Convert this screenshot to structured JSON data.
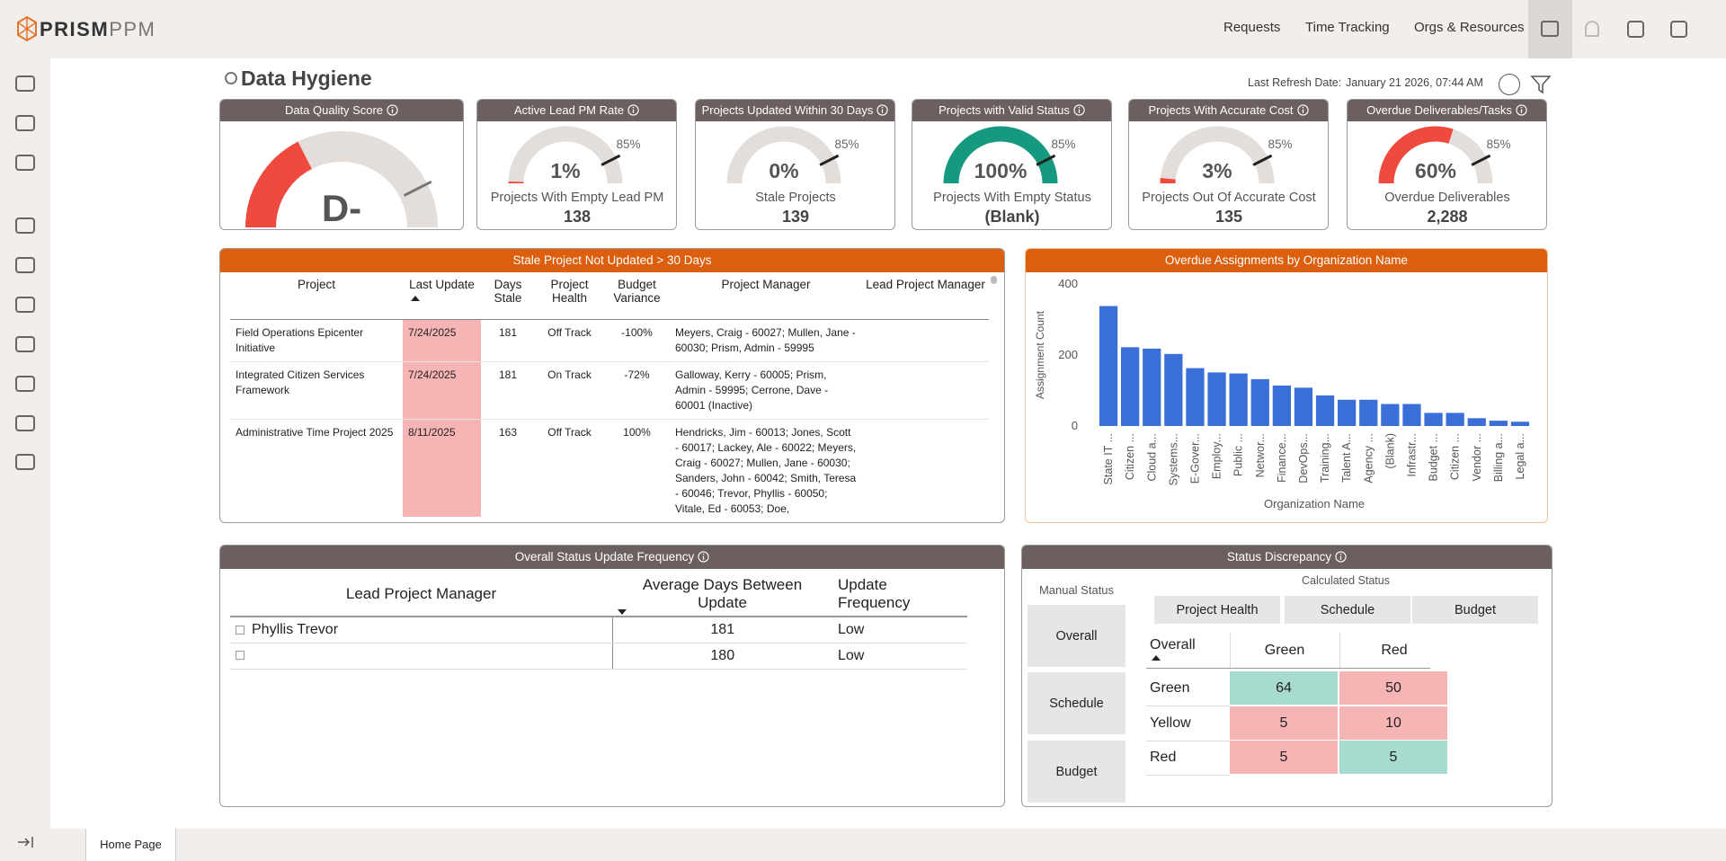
{
  "nav": {
    "logo_bold": "PRISM",
    "logo_light": "PPM",
    "links": [
      "Requests",
      "Time Tracking",
      "Orgs & Resources"
    ]
  },
  "header": {
    "title": "Data Hygiene",
    "refresh_label": "Last Refresh Date:",
    "refresh_date": "January 21 2026, 07:44 AM"
  },
  "score": {
    "title": "Data Quality Score",
    "grade": "D-",
    "value": 35,
    "target": 85,
    "color": "#ef4a3d"
  },
  "kpis": [
    {
      "title": "Active Lead PM Rate",
      "value": 1,
      "value_label": "1%",
      "target": 85,
      "target_label": "85%",
      "caption": "Projects With Empty Lead PM",
      "count": "138",
      "color": "#ef4a3d"
    },
    {
      "title": "Projects Updated Within 30 Days",
      "value": 0,
      "value_label": "0%",
      "target": 85,
      "target_label": "85%",
      "caption": "Stale Projects",
      "count": "139",
      "color": "#ef4a3d"
    },
    {
      "title": "Projects with Valid Status",
      "value": 100,
      "value_label": "100%",
      "target": 85,
      "target_label": "85%",
      "caption": "Projects With Empty Status",
      "count": "(Blank)",
      "color": "#15997f"
    },
    {
      "title": "Projects With Accurate Cost",
      "value": 3,
      "value_label": "3%",
      "target": 85,
      "target_label": "85%",
      "caption": "Projects Out Of Accurate Cost",
      "count": "135",
      "color": "#ef4a3d"
    },
    {
      "title": "Overdue Deliverables/Tasks",
      "value": 60,
      "value_label": "60%",
      "target": 85,
      "target_label": "85%",
      "caption": "Overdue Deliverables",
      "count": "2,288",
      "color": "#ef4a3d"
    }
  ],
  "stale_table": {
    "title": "Stale Project Not Updated > 30 Days",
    "columns": [
      "Project",
      "Last Update",
      "Days Stale",
      "Project Health",
      "Budget Variance",
      "Project Manager",
      "Lead Project Manager"
    ],
    "rows": [
      [
        "Field Operations Epicenter Initiative",
        "7/24/2025",
        181,
        "Off Track",
        "-100%",
        "Meyers, Craig - 60027; Mullen, Jane - 60030; Prism, Admin - 59995"
      ],
      [
        "Integrated Citizen Services Framework",
        "7/24/2025",
        181,
        "On Track",
        "-72%",
        "Galloway, Kerry - 60005; Prism, Admin - 59995; Cerrone, Dave - 60001 (Inactive)"
      ],
      [
        "Administrative Time Project 2025",
        "8/11/2025",
        163,
        "Off Track",
        "100%",
        "Hendricks, Jim - 60013; Jones, Scott - 60017; Lackey, Ale - 60022; Meyers, Craig - 60027; Mullen, Jane - 60030; Sanders, John - 60042; Smith, Teresa - 60046; Trevor, Phyllis - 60050; Vitale, Ed - 60053; Doe,"
      ]
    ]
  },
  "chart_data": {
    "type": "bar",
    "title": "Overdue Assignments by Organization Name",
    "x_label": "Organization Name",
    "y_label": "Assignment Count",
    "categories": [
      "State IT ...",
      "Citizen ...",
      "Cloud a...",
      "Systems...",
      "E-Gover...",
      "Employ...",
      "Public ...",
      "Networ...",
      "Finance...",
      "DevOps...",
      "Training...",
      "Talent A...",
      "Agency ...",
      "(Blank)",
      "Infrastr...",
      "Budget ...",
      "Citizen ...",
      "Vendor ...",
      "Billing a...",
      "Legal a..."
    ],
    "values": [
      338,
      222,
      218,
      203,
      163,
      151,
      148,
      132,
      114,
      108,
      86,
      74,
      74,
      62,
      62,
      37,
      37,
      22,
      15,
      12
    ],
    "color": "#3a6fd8",
    "ylim": [
      0,
      400
    ],
    "yticks": [
      0,
      200,
      400
    ],
    "grid": false
  },
  "frequency_table": {
    "title": "Overall Status Update Frequency",
    "columns": [
      "Lead Project Manager",
      "Average Days Between Update",
      "Update Frequency"
    ],
    "rows": [
      {
        "manager": "Phyllis Trevor",
        "days": 181,
        "frequency": "Low"
      },
      {
        "days": 180,
        "frequency": "Low"
      }
    ]
  },
  "discrepancy": {
    "title": "Status Discrepancy",
    "manual_label": "Manual Status",
    "calculated_label": "Calculated Status",
    "manual_options": [
      "Overall",
      "Schedule",
      "Budget"
    ],
    "calculated_options": [
      "Project Health",
      "Schedule",
      "Budget"
    ],
    "row_header": "Overall",
    "columns": [
      "Green",
      "Red"
    ],
    "rows": [
      {
        "name": "Green",
        "values": [
          64,
          50
        ]
      },
      {
        "name": "Yellow",
        "values": [
          5,
          10
        ]
      },
      {
        "name": "Red",
        "values": [
          5,
          5
        ]
      }
    ],
    "match_color": "#a7dbcf",
    "mismatch_color": "#f7b4b4"
  },
  "footer": {
    "tab": "Home Page"
  }
}
